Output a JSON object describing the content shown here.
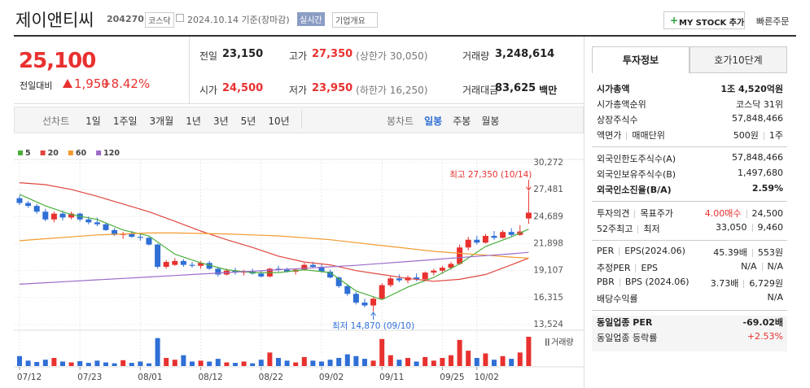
{
  "header": {
    "name": "제이앤티씨",
    "code": "204270",
    "market": "코스닥",
    "date": "2024.10.14 기준(장마감)",
    "realtime": "실시간",
    "overview": "기업개요",
    "mystock": "MY STOCK 추가",
    "quick_order": "빠른주문"
  },
  "price": {
    "current": "25,100",
    "change_label": "전일대비",
    "change": "1,950",
    "rate": "+8.42%"
  },
  "quote": [
    {
      "label": "전일",
      "value": "23,150"
    },
    {
      "label": "고가",
      "value": "27,350",
      "extra": "(상한가 30,050)",
      "color": "#e8312f"
    },
    {
      "label": "거래량",
      "value": "3,248,614"
    },
    {
      "label": "시가",
      "value": "24,500",
      "color": "#e8312f"
    },
    {
      "label": "저가",
      "value": "23,950",
      "extra": "(하한가 16,250)",
      "color": "#e8312f"
    },
    {
      "label": "거래대금",
      "value": "83,625",
      "unit": "백만"
    }
  ],
  "tabs": {
    "line": [
      "선차트",
      "1일",
      "1주일",
      "3개월",
      "1년",
      "3년",
      "5년",
      "10년"
    ],
    "candle": [
      "봉차트",
      "일봉",
      "주봉",
      "월봉"
    ],
    "active_candle": 1
  },
  "chart": {
    "type": "candlestick",
    "up_color": "#e8312f",
    "down_color": "#2f6fd6",
    "ylim": [
      13524,
      30272
    ],
    "yticks": [
      {
        "value": 30272,
        "label": "30,272"
      },
      {
        "value": 27481,
        "label": "27,481"
      },
      {
        "value": 24689,
        "label": "24,689"
      },
      {
        "value": 21898,
        "label": "21,898"
      },
      {
        "value": 19107,
        "label": "19,107"
      },
      {
        "value": 16315,
        "label": "16,315"
      },
      {
        "value": 13524,
        "label": "13,524"
      }
    ],
    "categories": [
      "07/12",
      null,
      null,
      null,
      null,
      null,
      null,
      "07/23",
      null,
      null,
      null,
      null,
      null,
      null,
      "08/01",
      null,
      null,
      null,
      null,
      null,
      null,
      "08/12",
      null,
      null,
      null,
      null,
      null,
      null,
      "08/22",
      null,
      null,
      null,
      null,
      null,
      null,
      "09/02",
      null,
      null,
      null,
      null,
      null,
      null,
      "09/11",
      null,
      null,
      null,
      null,
      null,
      null,
      "09/25",
      null,
      null,
      null,
      "10/02",
      null,
      null,
      null,
      null,
      null,
      null
    ],
    "open": [
      26600,
      26100,
      25800,
      25200,
      24400,
      25000,
      24600,
      25000,
      24400,
      24100,
      23900,
      23300,
      22800,
      22900,
      22600,
      22500,
      21800,
      19500,
      19700,
      20100,
      19700,
      19600,
      19900,
      19300,
      18700,
      19100,
      18900,
      19000,
      18800,
      18500,
      19300,
      19200,
      19000,
      19200,
      19700,
      19500,
      19000,
      18400,
      17500,
      16700,
      15800,
      15500,
      16200,
      17600,
      18300,
      18100,
      18400,
      18200,
      18900,
      19100,
      19400,
      19800,
      21500,
      22300,
      22000,
      22700,
      22500,
      23100,
      22800,
      24500
    ],
    "high": [
      26900,
      26300,
      26000,
      25500,
      25200,
      25300,
      25200,
      25100,
      24700,
      24600,
      24100,
      23500,
      23100,
      23200,
      22900,
      22600,
      21900,
      20200,
      20400,
      20300,
      20000,
      20100,
      20100,
      19500,
      19300,
      19400,
      19200,
      19300,
      19100,
      19400,
      19600,
      19400,
      19300,
      19900,
      20000,
      19800,
      19200,
      18500,
      17700,
      16900,
      16200,
      16400,
      17800,
      18500,
      18700,
      18600,
      18800,
      19000,
      19300,
      19600,
      20000,
      21800,
      22600,
      22700,
      22900,
      23200,
      23300,
      23500,
      23800,
      27350
    ],
    "low": [
      25900,
      25600,
      25000,
      24200,
      24100,
      24300,
      24400,
      24200,
      23900,
      23700,
      23200,
      22700,
      22400,
      22500,
      22200,
      21700,
      19300,
      19300,
      19600,
      19500,
      19400,
      19300,
      19200,
      18500,
      18600,
      18700,
      18600,
      18700,
      18400,
      18400,
      19000,
      18900,
      18700,
      19100,
      19400,
      18900,
      18300,
      17300,
      16500,
      15600,
      15300,
      14870,
      16100,
      17400,
      17900,
      17800,
      18000,
      18100,
      18600,
      18800,
      19200,
      19700,
      21200,
      21800,
      21900,
      22300,
      22400,
      22600,
      22700,
      23950
    ],
    "close": [
      26100,
      25800,
      25200,
      24400,
      25000,
      24600,
      25000,
      24400,
      24100,
      23900,
      23300,
      22800,
      22900,
      22600,
      22500,
      21800,
      19500,
      20000,
      20100,
      19700,
      19600,
      19900,
      19300,
      18700,
      19100,
      18900,
      19000,
      18800,
      18500,
      19300,
      19200,
      19000,
      19200,
      19700,
      19500,
      19000,
      18400,
      17500,
      16700,
      15800,
      15500,
      16200,
      17600,
      18300,
      18100,
      18400,
      18200,
      18900,
      19100,
      19400,
      19800,
      21500,
      22300,
      22000,
      22700,
      22500,
      23100,
      22800,
      23150,
      25100
    ],
    "volume": [
      1100000,
      600000,
      450000,
      700000,
      900000,
      500000,
      400000,
      550000,
      350000,
      600000,
      400000,
      300000,
      650000,
      350000,
      500000,
      300000,
      3100000,
      900000,
      700000,
      1200000,
      500000,
      600000,
      500000,
      800000,
      400000,
      350000,
      500000,
      300000,
      700000,
      1500000,
      900000,
      600000,
      400000,
      1000000,
      600000,
      500000,
      700000,
      900000,
      1300000,
      1100000,
      800000,
      600000,
      3000000,
      1200000,
      700000,
      900000,
      500000,
      1000000,
      600000,
      900000,
      1200000,
      2900000,
      1700000,
      900000,
      1400000,
      700000,
      1100000,
      800000,
      1500000,
      3248614
    ],
    "series": [
      {
        "name": "5",
        "color": "#4caf3c",
        "x": [
          0,
          3,
          6,
          9,
          12,
          15,
          18,
          21,
          24,
          27,
          30,
          33,
          36,
          39,
          42,
          45,
          48,
          51,
          54,
          57,
          59
        ],
        "values": [
          27000,
          25800,
          24900,
          24400,
          23300,
          22700,
          20800,
          19900,
          19200,
          18900,
          18900,
          19200,
          18900,
          17000,
          16100,
          17400,
          18400,
          19800,
          21600,
          22600,
          23400
        ]
      },
      {
        "name": "20",
        "color": "#e0463e",
        "x": [
          0,
          3,
          6,
          9,
          12,
          15,
          18,
          21,
          24,
          27,
          30,
          33,
          36,
          39,
          42,
          45,
          48,
          51,
          54,
          57,
          59
        ],
        "values": [
          28200,
          28000,
          27500,
          26800,
          26000,
          25200,
          24200,
          23200,
          22300,
          21500,
          20600,
          20000,
          19700,
          19100,
          18700,
          18300,
          18000,
          18200,
          18700,
          19700,
          20400
        ]
      },
      {
        "name": "60",
        "color": "#f39a2e",
        "x": [
          0,
          3,
          6,
          9,
          12,
          15,
          18,
          21,
          24,
          27,
          30,
          33,
          36,
          39,
          42,
          45,
          48,
          51,
          54,
          57,
          59
        ],
        "values": [
          22200,
          22400,
          22600,
          22800,
          22900,
          23000,
          23000,
          22950,
          22900,
          22800,
          22700,
          22500,
          22300,
          22000,
          21700,
          21400,
          21100,
          20900,
          20700,
          20500,
          20400
        ]
      },
      {
        "name": "120",
        "color": "#9c6bc9",
        "x": [
          0,
          3,
          6,
          9,
          12,
          15,
          18,
          21,
          24,
          27,
          30,
          33,
          36,
          39,
          42,
          45,
          48,
          51,
          54,
          57,
          59
        ],
        "values": [
          17700,
          17850,
          18000,
          18150,
          18300,
          18450,
          18600,
          18750,
          18900,
          19050,
          19200,
          19350,
          19500,
          19650,
          19850,
          20050,
          20250,
          20450,
          20650,
          20850,
          21000
        ]
      }
    ],
    "high_note": "최고 27,350 (10/14)",
    "low_note": "최저 14,870 (09/10)",
    "volume_label": "거래량"
  },
  "side": {
    "tabs": [
      "투자정보",
      "호가10단계"
    ],
    "groups": [
      [
        {
          "label": [
            "시가총액"
          ],
          "value": [
            "1조 4,520억원"
          ],
          "bold": true
        },
        {
          "label": [
            "시가총액순위"
          ],
          "value": [
            "코스닥 31위"
          ]
        },
        {
          "label": [
            "상장주식수"
          ],
          "value": [
            "57,848,466"
          ]
        },
        {
          "label": [
            "액면가",
            "매매단위"
          ],
          "value": [
            "500원",
            "1주"
          ]
        }
      ],
      [
        {
          "label": [
            "외국인한도주식수(A)"
          ],
          "value": [
            "57,848,466"
          ]
        },
        {
          "label": [
            "외국인보유주식수(B)"
          ],
          "value": [
            "1,497,680"
          ]
        },
        {
          "label": [
            "외국인소진율(B/A)"
          ],
          "value": [
            "2.59%"
          ],
          "bold": true
        }
      ],
      [
        {
          "label": [
            "투자의견",
            "목표주가"
          ],
          "value": [
            "4.00매수",
            "24,500"
          ],
          "value_colors": [
            "#e8312f",
            null
          ]
        },
        {
          "label": [
            "52주최고",
            "최저"
          ],
          "value": [
            "33,050",
            "9,460"
          ]
        }
      ],
      [
        {
          "label": [
            "PER",
            "EPS(2024.06)"
          ],
          "value": [
            "45.39배",
            "553원"
          ]
        },
        {
          "label": [
            "추정PER",
            "EPS"
          ],
          "value": [
            "N/A",
            "N/A"
          ]
        },
        {
          "label": [
            "PBR",
            "BPS (2024.06)"
          ],
          "value": [
            "3.73배",
            "6,729원"
          ]
        },
        {
          "label": [
            "배당수익률"
          ],
          "value": [
            "N/A"
          ]
        }
      ],
      [
        {
          "label": [
            "동일업종 PER"
          ],
          "value": [
            "-69.02배"
          ],
          "bold": true
        },
        {
          "label": [
            "동일업종 등락률"
          ],
          "value": [
            "+2.53%"
          ],
          "value_colors": [
            "#e8312f"
          ]
        }
      ]
    ]
  }
}
